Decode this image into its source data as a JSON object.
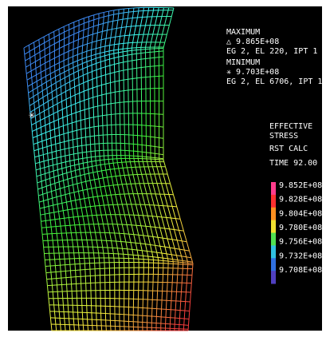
{
  "maximum": {
    "label": "MAXIMUM",
    "value": "△ 9.865E+08",
    "location": "EG 2, EL 220, IPT 1"
  },
  "minimum": {
    "label": "MINIMUM",
    "value": "✳ 9.703E+08",
    "location": "EG 2, EL 6706, IPT 1"
  },
  "result": {
    "lines": [
      "EFFECTIVE",
      "STRESS",
      "RST CALC",
      "TIME 92.00"
    ]
  },
  "legend": {
    "labels": [
      "9.852E+08",
      "9.828E+08",
      "9.804E+08",
      "9.780E+08",
      "9.756E+08",
      "9.732E+08",
      "9.708E+08"
    ]
  }
}
